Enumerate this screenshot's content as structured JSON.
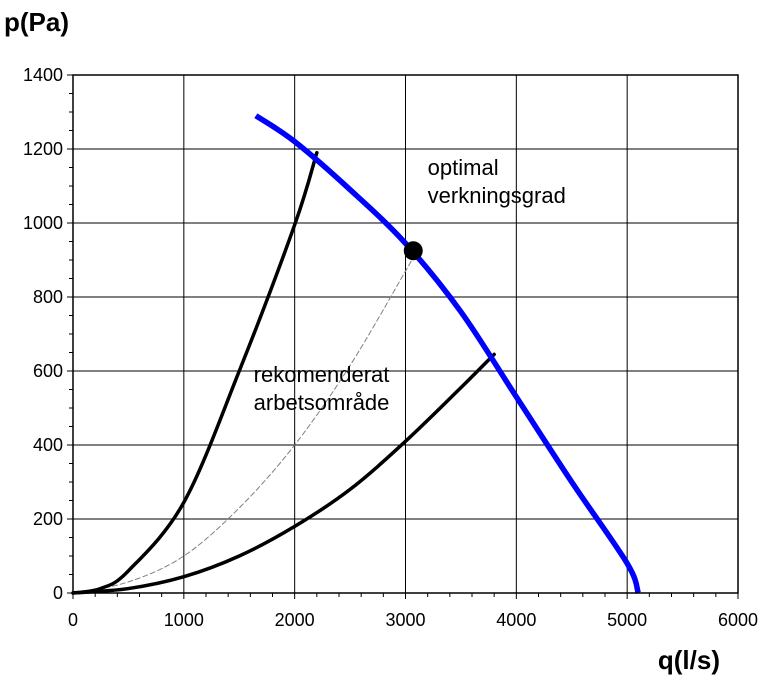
{
  "chart_data": {
    "type": "line",
    "title": "",
    "xlabel": "q(l/s)",
    "ylabel": "p(Pa)",
    "xlim": [
      0,
      6000
    ],
    "ylim": [
      0,
      1400
    ],
    "xticks": [
      0,
      1000,
      2000,
      3000,
      4000,
      5000,
      6000
    ],
    "yticks": [
      0,
      200,
      400,
      600,
      800,
      1000,
      1200,
      1400
    ],
    "grid": true,
    "legend": "none",
    "series": [
      {
        "color": "#0000ff",
        "style": "solid",
        "x": [
          1650,
          2000,
          2500,
          3000,
          3500,
          4000,
          4500,
          5000,
          5100
        ],
        "y": [
          1290,
          1220,
          1090,
          945,
          760,
          530,
          300,
          80,
          0
        ]
      },
      {
        "color": "#000000",
        "style": "solid",
        "x": [
          0,
          250,
          500,
          1000,
          1500,
          2000,
          2200
        ],
        "y": [
          0,
          12,
          60,
          245,
          600,
          995,
          1190
        ]
      },
      {
        "color": "#000000",
        "style": "solid",
        "x": [
          0,
          500,
          1000,
          1500,
          2000,
          2500,
          3000,
          3500,
          3800
        ],
        "y": [
          0,
          12,
          44,
          100,
          180,
          280,
          410,
          555,
          645
        ]
      },
      {
        "color": "#808080",
        "style": "dashed",
        "x": [
          0,
          500,
          1000,
          1500,
          2000,
          2500,
          3000,
          3100
        ],
        "y": [
          0,
          30,
          100,
          230,
          400,
          615,
          870,
          925
        ]
      }
    ],
    "points": [
      {
        "x": 3070,
        "y": 925
      }
    ],
    "annotations": [
      {
        "lines": [
          "optimal",
          "verkningsgrad"
        ],
        "x": 3200,
        "y": 1130
      },
      {
        "lines": [
          "rekomenderat",
          "arbetsområde"
        ],
        "x": 1630,
        "y": 570
      }
    ]
  }
}
